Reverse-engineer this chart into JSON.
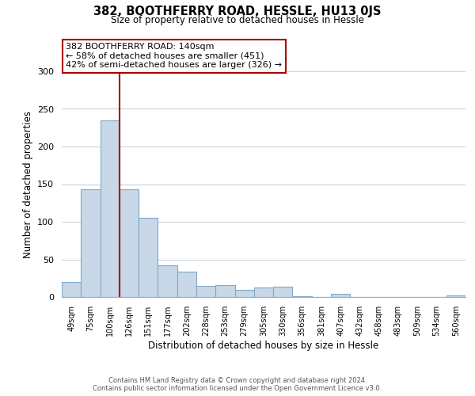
{
  "title": "382, BOOTHFERRY ROAD, HESSLE, HU13 0JS",
  "subtitle": "Size of property relative to detached houses in Hessle",
  "xlabel": "Distribution of detached houses by size in Hessle",
  "ylabel": "Number of detached properties",
  "bar_labels": [
    "49sqm",
    "75sqm",
    "100sqm",
    "126sqm",
    "151sqm",
    "177sqm",
    "202sqm",
    "228sqm",
    "253sqm",
    "279sqm",
    "305sqm",
    "330sqm",
    "356sqm",
    "381sqm",
    "407sqm",
    "432sqm",
    "458sqm",
    "483sqm",
    "509sqm",
    "534sqm",
    "560sqm"
  ],
  "bar_values": [
    20,
    143,
    235,
    143,
    105,
    42,
    34,
    15,
    16,
    10,
    13,
    14,
    1,
    0,
    4,
    0,
    0,
    0,
    0,
    0,
    2
  ],
  "bar_color": "#c8d8e8",
  "bar_edge_color": "#7fa8c8",
  "vline_x_index": 2,
  "vline_color": "#aa0000",
  "ylim": [
    0,
    300
  ],
  "yticks": [
    0,
    50,
    100,
    150,
    200,
    250,
    300
  ],
  "annotation_line1": "382 BOOTHFERRY ROAD: 140sqm",
  "annotation_line2": "← 58% of detached houses are smaller (451)",
  "annotation_line3": "42% of semi-detached houses are larger (326) →",
  "annotation_box_color": "#ffffff",
  "annotation_box_edge": "#aa0000",
  "footer_line1": "Contains HM Land Registry data © Crown copyright and database right 2024.",
  "footer_line2": "Contains public sector information licensed under the Open Government Licence v3.0.",
  "bg_color": "#ffffff",
  "grid_color": "#c8d4e0"
}
